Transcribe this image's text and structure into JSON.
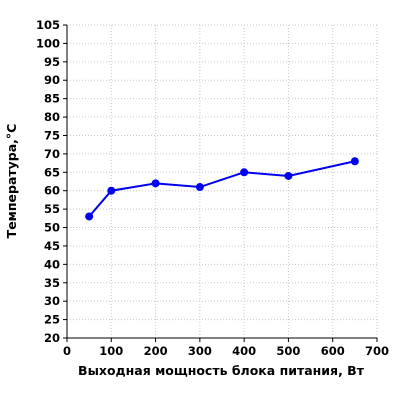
{
  "chart_data": {
    "type": "line",
    "title": "",
    "xlabel": "Выходная мощность блока питания, Вт",
    "ylabel": "Температура,°C",
    "xlim": [
      0,
      700
    ],
    "ylim": [
      20,
      105
    ],
    "x_ticks": [
      0,
      100,
      200,
      300,
      400,
      500,
      600,
      700
    ],
    "y_ticks": [
      20,
      25,
      30,
      35,
      40,
      45,
      50,
      55,
      60,
      65,
      70,
      75,
      80,
      85,
      90,
      95,
      100,
      105
    ],
    "grid": true,
    "legend": "none",
    "series": [
      {
        "color": "#0000ee",
        "marker": "circle",
        "x": [
          50,
          100,
          200,
          300,
          400,
          500,
          650
        ],
        "y": [
          53,
          60,
          62,
          61,
          65,
          64,
          68
        ]
      }
    ]
  }
}
